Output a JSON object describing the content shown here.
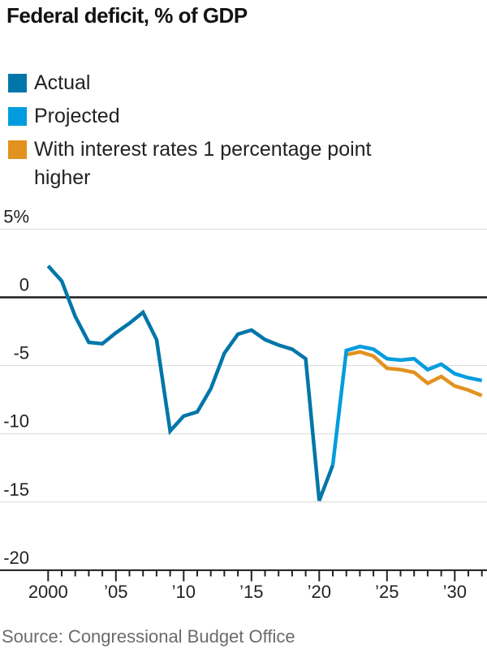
{
  "title": "Federal deficit, % of GDP",
  "source": "Source: Congressional Budget Office",
  "legend": {
    "items": [
      {
        "label": "Actual",
        "color": "#0076A9"
      },
      {
        "label": "Projected",
        "color": "#009CDE"
      },
      {
        "label": "With interest rates 1 percentage point\nhigher",
        "color": "#E2921F"
      }
    ]
  },
  "chart_data": {
    "type": "line",
    "title": "Federal deficit, % of GDP",
    "xlabel": "",
    "ylabel": "% of GDP",
    "grid": "horizontal",
    "legend_position": "top-left",
    "x_axis": {
      "range": [
        2000,
        2032
      ],
      "minor_tick_every": 1,
      "major_tick_every": 5,
      "tick_labels": [
        {
          "year": 2000,
          "label": "2000"
        },
        {
          "year": 2005,
          "label": "’05"
        },
        {
          "year": 2010,
          "label": "’10"
        },
        {
          "year": 2015,
          "label": "’15"
        },
        {
          "year": 2020,
          "label": "’20"
        },
        {
          "year": 2025,
          "label": "’25"
        },
        {
          "year": 2030,
          "label": "’30"
        }
      ]
    },
    "y_axis": {
      "range": [
        -20,
        5
      ],
      "ticks": [
        {
          "value": 5,
          "label": "5%"
        },
        {
          "value": 0,
          "label": "0"
        },
        {
          "value": -5,
          "label": "-5"
        },
        {
          "value": -10,
          "label": "-10"
        },
        {
          "value": -15,
          "label": "-15"
        },
        {
          "value": -20,
          "label": "-20"
        }
      ]
    },
    "series": [
      {
        "name": "Actual",
        "color": "#0076A9",
        "x": [
          2000,
          2001,
          2002,
          2003,
          2004,
          2005,
          2006,
          2007,
          2008,
          2009,
          2010,
          2011,
          2012,
          2013,
          2014,
          2015,
          2016,
          2017,
          2018,
          2019,
          2020,
          2021
        ],
        "values": [
          2.3,
          1.2,
          -1.4,
          -3.3,
          -3.4,
          -2.6,
          -1.9,
          -1.1,
          -3.1,
          -9.8,
          -8.7,
          -8.4,
          -6.7,
          -4.1,
          -2.7,
          -2.4,
          -3.1,
          -3.5,
          -3.8,
          -4.5,
          -14.9,
          -12.3
        ]
      },
      {
        "name": "Projected",
        "color": "#009CDE",
        "x": [
          2021,
          2022,
          2023,
          2024,
          2025,
          2026,
          2027,
          2028,
          2029,
          2030,
          2031,
          2032
        ],
        "values": [
          -12.3,
          -3.9,
          -3.6,
          -3.8,
          -4.5,
          -4.6,
          -4.5,
          -5.3,
          -4.9,
          -5.6,
          -5.9,
          -6.1
        ]
      },
      {
        "name": "With interest rates 1 percentage point higher",
        "color": "#E2921F",
        "x": [
          2022,
          2023,
          2024,
          2025,
          2026,
          2027,
          2028,
          2029,
          2030,
          2031,
          2032
        ],
        "values": [
          -4.2,
          -4.0,
          -4.3,
          -5.2,
          -5.3,
          -5.5,
          -6.3,
          -5.8,
          -6.5,
          -6.8,
          -7.2
        ]
      }
    ]
  }
}
